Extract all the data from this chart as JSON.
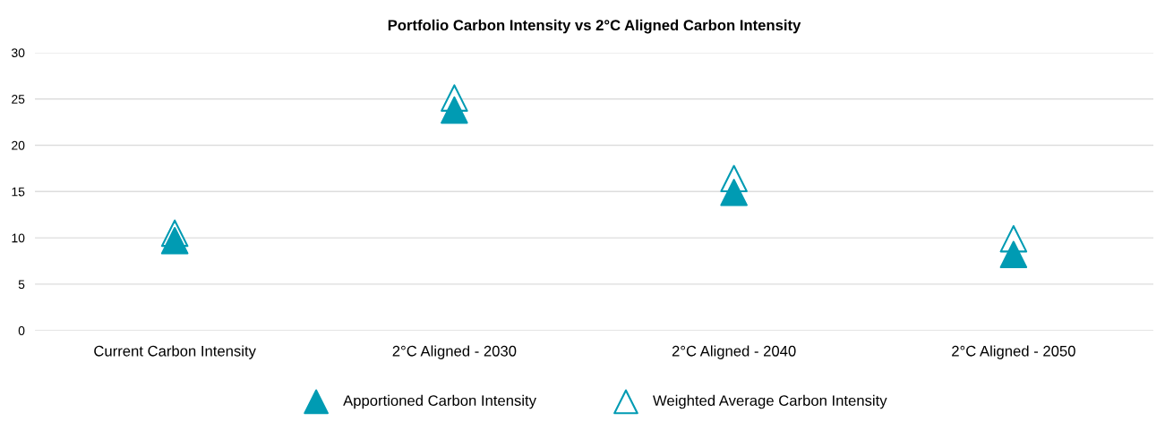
{
  "chart_data": {
    "type": "scatter",
    "title": "Portfolio Carbon Intensity vs 2°C Aligned Carbon Intensity",
    "categories": [
      "Current Carbon Intensity",
      "2°C Aligned - 2030",
      "2°C Aligned - 2040",
      "2°C Aligned - 2050"
    ],
    "series": [
      {
        "name": "Apportioned Carbon Intensity",
        "color": "#009bb3",
        "values": [
          9.7,
          23.8,
          14.9,
          8.2
        ]
      },
      {
        "name": "Weighted Average Carbon Intensity",
        "color": "#009bb3",
        "values": [
          10.5,
          25.1,
          16.4,
          9.9
        ]
      }
    ],
    "ylim": [
      0,
      30
    ],
    "yticks": [
      0,
      5,
      10,
      15,
      20,
      25,
      30
    ],
    "grid": "y",
    "legend": "bottom",
    "marker": "triangle"
  }
}
